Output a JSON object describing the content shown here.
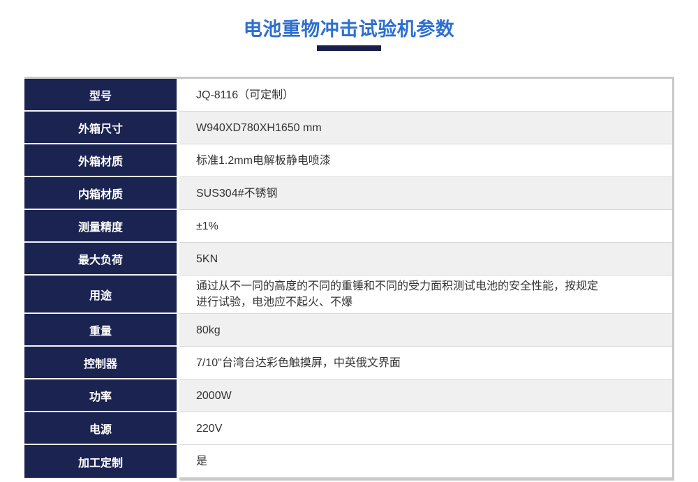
{
  "header": {
    "title": "电池重物冲击试验机参数",
    "title_color": "#2e6fd0",
    "underline_color": "#191f4a"
  },
  "table": {
    "label_column_color": "#1b2351",
    "label_text_color": "#ffffff",
    "zebra_row_color": "#f0f0f0",
    "border_color": "#c9c9c9",
    "value_text_color": "#333333",
    "rows": [
      {
        "label": "型号",
        "value": "JQ-8116（可定制）",
        "shaded": false
      },
      {
        "label": "外箱尺寸",
        "value": "W940XD780XH1650 mm",
        "shaded": true
      },
      {
        "label": "外箱材质",
        "value": "标准1.2mm电解板静电喷漆",
        "shaded": false
      },
      {
        "label": "内箱材质",
        "value": "SUS304#不锈钢",
        "shaded": true
      },
      {
        "label": "测量精度",
        "value": "±1%",
        "shaded": false
      },
      {
        "label": "最大负荷",
        "value": "5KN",
        "shaded": true
      },
      {
        "label": "用途",
        "value": "通过从不一同的高度的不同的重锤和不同的受力面积测试电池的安全性能，按规定进行试验，电池应不起火、不爆",
        "shaded": false
      },
      {
        "label": "重量",
        "value": "80kg",
        "shaded": true
      },
      {
        "label": "控制器",
        "value": "7/10\"台湾台达彩色触摸屏，中英俄文界面",
        "shaded": false
      },
      {
        "label": "功率",
        "value": "2000W",
        "shaded": true
      },
      {
        "label": "电源",
        "value": "220V",
        "shaded": false
      },
      {
        "label": "加工定制",
        "value": "是",
        "shaded": false
      }
    ]
  }
}
